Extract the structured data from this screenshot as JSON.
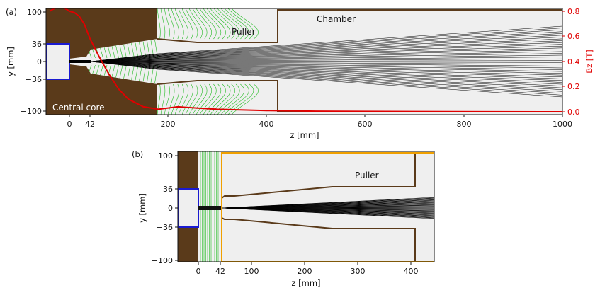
{
  "panels": [
    {
      "id": "a",
      "label": "(a)",
      "xlabel": "z [mm]",
      "ylabel": "y [mm]",
      "y2label": "Bz [T]",
      "xticks": [
        "0",
        "42",
        "200",
        "400",
        "600",
        "800",
        "1000"
      ],
      "yticks": [
        "100",
        "36",
        "0",
        "−36",
        "−100"
      ],
      "y2ticks": [
        "0.8",
        "0.6",
        "0.4",
        "0.2",
        "0.0"
      ],
      "annotations": {
        "chamber": "Chamber",
        "puller": "Puller",
        "core": "Central core"
      }
    },
    {
      "id": "b",
      "label": "(b)",
      "xlabel": "z [mm]",
      "ylabel": "y [mm]",
      "xticks": [
        "0",
        "42",
        "100",
        "200",
        "300",
        "400"
      ],
      "yticks": [
        "100",
        "36",
        "0",
        "−36",
        "−100"
      ],
      "annotations": {
        "puller": "Puller"
      }
    }
  ],
  "chart_data": [
    {
      "type": "line",
      "panel": "a",
      "xlabel": "z [mm]",
      "ylabel": "y [mm]",
      "y2label": "Bz [T]",
      "xlim": [
        -75,
        1000
      ],
      "ylim": [
        -110,
        110
      ],
      "y2lim": [
        -0.02,
        0.83
      ],
      "grid": false,
      "series": [
        {
          "axis": "right",
          "color": "#e00000",
          "x": [
            0,
            10,
            20,
            30,
            42,
            60,
            80,
            100,
            120,
            150,
            180,
            220,
            260,
            300,
            400,
            500,
            700,
            1000
          ],
          "y": [
            0.8,
            0.79,
            0.76,
            0.7,
            0.58,
            0.44,
            0.3,
            0.18,
            0.1,
            0.04,
            0.02,
            0.04,
            0.03,
            0.02,
            0.01,
            0.005,
            0.002,
            0.0
          ]
        }
      ],
      "regions": {
        "central_core_z": [
          -75,
          176
        ],
        "central_core_opening_y": [
          -36,
          36
        ],
        "puller_z": [
          176,
          420
        ],
        "chamber_z": [
          420,
          1000
        ]
      },
      "colors": {
        "core": "#5a3a1a",
        "field": "#e00000",
        "electrode": "#1a1ad0",
        "fieldlines": "#22bb22",
        "beam": "#000000",
        "wall": "#6b4a2a"
      }
    },
    {
      "type": "line",
      "panel": "b",
      "xlabel": "z [mm]",
      "ylabel": "y [mm]",
      "xlim": [
        -40,
        450
      ],
      "ylim": [
        -105,
        105
      ],
      "grid": false,
      "regions": {
        "boundary_z": 42,
        "puller_z": [
          42,
          410
        ]
      },
      "colors": {
        "core": "#5a3a1a",
        "electrode": "#1a1ad0",
        "boundary": "#f0a000",
        "fieldlines": "#22bb22",
        "beam": "#000000",
        "wall": "#6b4a2a"
      }
    }
  ]
}
